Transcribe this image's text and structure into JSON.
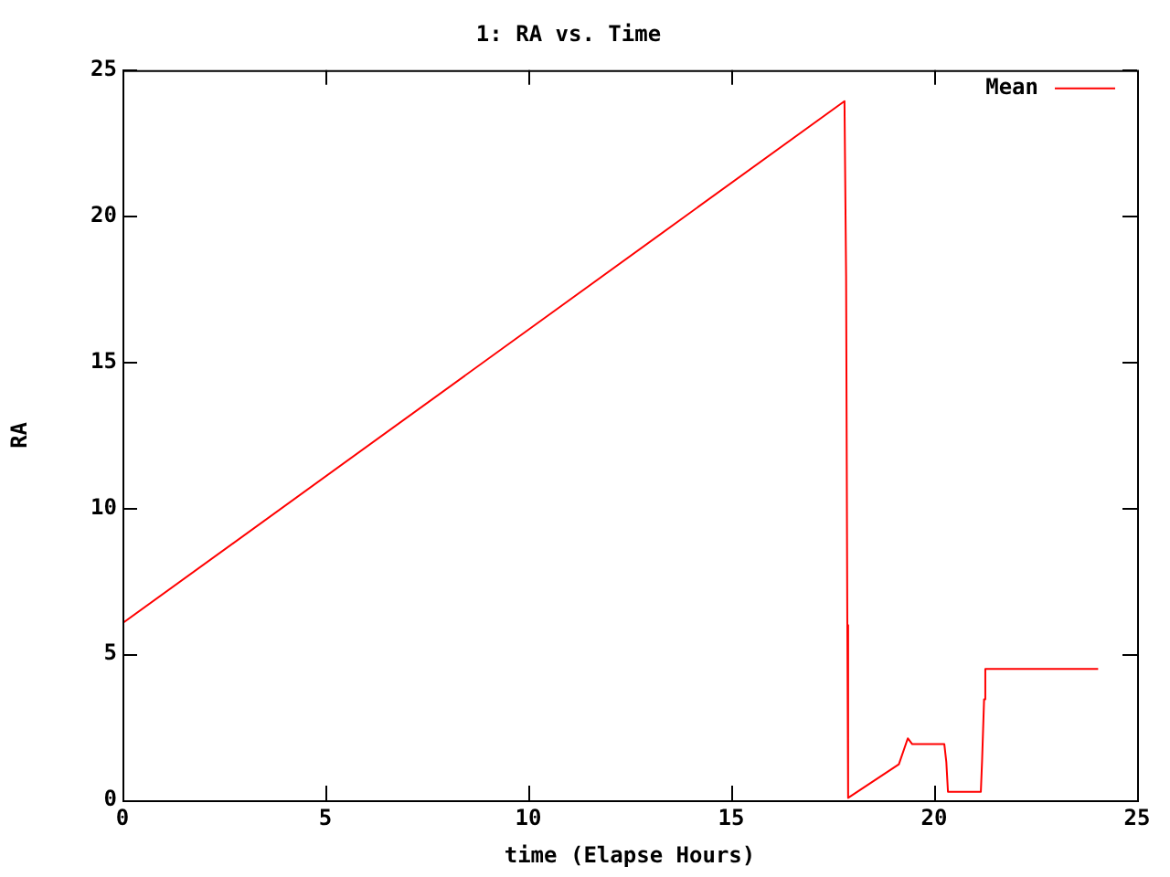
{
  "chart_data": {
    "type": "line",
    "title": "1: RA vs. Time",
    "xlabel": "time (Elapse Hours)",
    "ylabel": "RA",
    "xlim": [
      0,
      25
    ],
    "xticks": [
      0,
      5,
      10,
      15,
      20,
      25
    ],
    "ylim": [
      0,
      25
    ],
    "yticks": [
      0,
      5,
      10,
      15,
      20,
      25
    ],
    "grid": false,
    "legend": "top right",
    "marker": "none",
    "line_style": "solid",
    "series": [
      {
        "name": "Mean",
        "color": "#ff0000",
        "x": [
          0,
          17.79,
          17.83,
          17.86,
          17.88,
          19.13,
          19.35,
          19.46,
          20.25,
          20.3,
          20.34,
          21.15,
          21.18,
          21.23,
          21.26,
          24.04
        ],
        "values": [
          6.06,
          23.94,
          17.95,
          6.0,
          0.08,
          1.23,
          2.12,
          1.92,
          1.92,
          1.3,
          0.29,
          0.29,
          1.33,
          3.46,
          4.5,
          4.5
        ]
      }
    ]
  }
}
